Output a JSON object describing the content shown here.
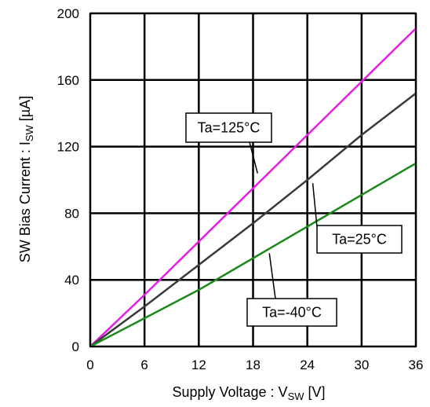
{
  "chart_data": {
    "type": "line",
    "xlabel": {
      "main": "Supply Voltage : V",
      "sub": "SW",
      "unit": " [V]"
    },
    "ylabel": {
      "main": "SW Bias Current : I",
      "sub": "SW",
      "unit": " [µA]"
    },
    "xlim": [
      0,
      36
    ],
    "ylim": [
      0,
      200
    ],
    "x_ticks": [
      0,
      6,
      12,
      18,
      24,
      30,
      36
    ],
    "y_ticks": [
      0,
      40,
      80,
      120,
      160,
      200
    ],
    "x_tick_labels": [
      "0",
      "6",
      "12",
      "18",
      "24",
      "30",
      "36"
    ],
    "y_tick_labels": [
      "0",
      "40",
      "80",
      "120",
      "160",
      "200"
    ],
    "grid": true,
    "series": [
      {
        "name": "Ta=125°C",
        "color": "#e61ee6",
        "x": [
          0,
          6,
          12,
          18,
          24,
          30,
          36
        ],
        "y": [
          0,
          31,
          63,
          95,
          127,
          159,
          191
        ]
      },
      {
        "name": "Ta=25°C",
        "color": "#3a3a3a",
        "x": [
          0,
          6,
          12,
          18,
          24,
          30,
          36
        ],
        "y": [
          0,
          24,
          49,
          74,
          100,
          127,
          152
        ]
      },
      {
        "name": "Ta=-40°C",
        "color": "#1a8a1a",
        "x": [
          0,
          6,
          12,
          18,
          24,
          30,
          36
        ],
        "y": [
          0,
          17,
          34,
          53,
          72,
          91,
          110
        ]
      }
    ],
    "annotations": [
      {
        "label": "Ta=125°C",
        "series": 0,
        "point": [
          18.5,
          104
        ]
      },
      {
        "label": "Ta=25°C",
        "series": 1,
        "point": [
          24.6,
          98
        ]
      },
      {
        "label": "Ta=-40°C",
        "series": 2,
        "point": [
          19.8,
          56
        ]
      }
    ]
  }
}
